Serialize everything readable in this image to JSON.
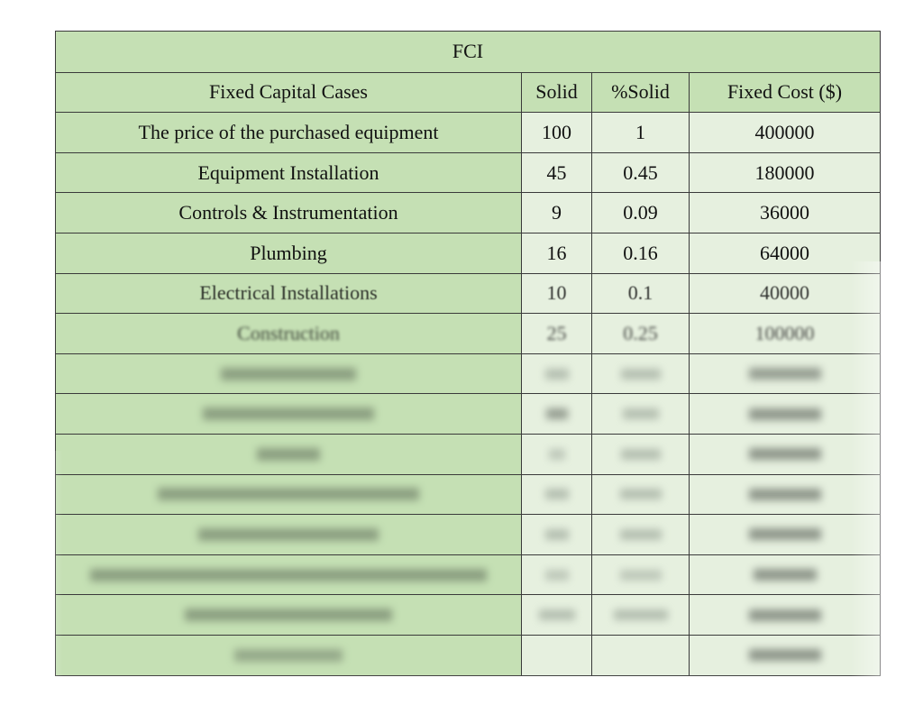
{
  "table": {
    "title": "FCI",
    "headers": {
      "name": "Fixed Capital Cases",
      "solid": "Solid",
      "pct": "%Solid",
      "cost": "Fixed Cost ($)"
    },
    "rows": [
      {
        "name": "The price of the purchased equipment",
        "solid": "100",
        "pct": "1",
        "cost": "400000"
      },
      {
        "name": "Equipment Installation",
        "solid": "45",
        "pct": "0.45",
        "cost": "180000"
      },
      {
        "name": "Controls & Instrumentation",
        "solid": "9",
        "pct": "0.09",
        "cost": "36000"
      },
      {
        "name": "Plumbing",
        "solid": "16",
        "pct": "0.16",
        "cost": "64000"
      },
      {
        "name": "Electrical Installations",
        "solid": "10",
        "pct": "0.1",
        "cost": "40000"
      },
      {
        "name": "Construction",
        "solid": "25",
        "pct": "0.25",
        "cost": "100000"
      }
    ]
  }
}
